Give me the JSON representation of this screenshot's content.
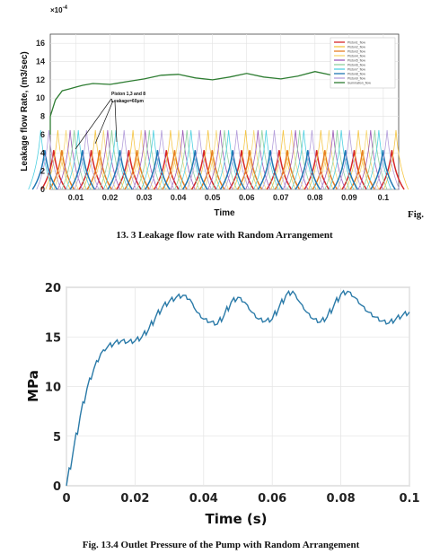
{
  "figure1": {
    "caption": "13. 3 Leakage flow rate with Random Arrangement",
    "fig_prefix": "Fig.",
    "exponent": "×10",
    "exponent_power": "-4",
    "annotation_line1": "Piston 1,3 and 8",
    "annotation_line2": "Leakage=60μm"
  },
  "figure2": {
    "caption": "Fig. 13.4 Outlet Pressure of the Pump with Random Arrangement"
  },
  "chart_data": [
    {
      "type": "line",
      "xlabel": "Time",
      "ylabel": "Leakage flow Rate, (m3/sec)",
      "xlim": [
        0,
        0.1
      ],
      "ylim": [
        0,
        17
      ],
      "y_scale_factor": "1e-4",
      "x_ticks": [
        "0.01",
        "0.02",
        "0.03",
        "0.04",
        "0.05",
        "0.06",
        "0.07",
        "0.08",
        "0.09",
        "0.1"
      ],
      "y_ticks": [
        "0",
        "2",
        "4",
        "6",
        "8",
        "10",
        "12",
        "14",
        "16"
      ],
      "grid": true,
      "legend_position": "top-right",
      "legend": [
        "Piston1_flow",
        "Piston2_flow",
        "Piston3_flow",
        "Piston4_flow",
        "Piston5_flow",
        "Piston6_flow",
        "Piston7_flow",
        "Piston8_flow",
        "Piston9_flow",
        "Summation_flow"
      ],
      "colors": [
        "#d62728",
        "#f5c542",
        "#e67e22",
        "#f7d774",
        "#9b59b6",
        "#8fd19e",
        "#4dd0e1",
        "#1f77b4",
        "#b39ddb",
        "#2e7d32"
      ],
      "period": 0.011,
      "piston_phases": [
        0.0035,
        0.0047,
        0.0059,
        0.0071,
        0.0083,
        0.0095,
        0.0107,
        0.0119,
        0.0131
      ],
      "piston_peaks": [
        4.3,
        6.5,
        4.3,
        6.5,
        6.5,
        6.5,
        6.5,
        4.3,
        6.5
      ],
      "summation_flow": {
        "x": [
          0.0,
          0.002,
          0.004,
          0.006,
          0.008,
          0.01,
          0.012,
          0.015,
          0.02,
          0.025,
          0.03,
          0.035,
          0.04,
          0.045,
          0.05,
          0.055,
          0.06,
          0.065,
          0.07,
          0.075,
          0.08,
          0.085,
          0.09,
          0.095,
          0.1
        ],
        "y": [
          6.0,
          8.0,
          9.8,
          10.8,
          11.0,
          11.2,
          11.4,
          11.6,
          11.5,
          11.8,
          12.1,
          12.5,
          12.6,
          12.2,
          12.0,
          12.3,
          12.7,
          12.3,
          12.1,
          12.4,
          12.9,
          12.5,
          12.0,
          11.8,
          12.1
        ]
      }
    },
    {
      "type": "line",
      "xlabel": "Time (s)",
      "ylabel": "MPa",
      "xlim": [
        0,
        0.1
      ],
      "ylim": [
        0,
        20
      ],
      "x_ticks": [
        "0",
        "0.02",
        "0.04",
        "0.06",
        "0.08",
        "0.1"
      ],
      "y_ticks": [
        "0",
        "5",
        "10",
        "15",
        "20"
      ],
      "grid": true,
      "color": "#2a7aa8",
      "series": [
        {
          "x": [
            0.0,
            0.002,
            0.004,
            0.006,
            0.008,
            0.01,
            0.012,
            0.014,
            0.016,
            0.018,
            0.02,
            0.022,
            0.024,
            0.026,
            0.028,
            0.03,
            0.032,
            0.034,
            0.036,
            0.038,
            0.04,
            0.042,
            0.044,
            0.046,
            0.048,
            0.05,
            0.052,
            0.054,
            0.056,
            0.058,
            0.06,
            0.062,
            0.064,
            0.066,
            0.068,
            0.07,
            0.072,
            0.074,
            0.076,
            0.078,
            0.08,
            0.082,
            0.084,
            0.086,
            0.088,
            0.09,
            0.092,
            0.094,
            0.096,
            0.098,
            0.1
          ],
          "y": [
            0.0,
            3.5,
            7.0,
            9.8,
            11.8,
            13.3,
            14.0,
            14.4,
            14.6,
            14.5,
            14.6,
            15.0,
            15.8,
            17.0,
            18.0,
            18.6,
            19.0,
            19.2,
            18.8,
            17.5,
            16.8,
            16.5,
            16.3,
            17.2,
            18.5,
            19.0,
            18.5,
            17.5,
            16.8,
            16.6,
            16.8,
            18.0,
            19.2,
            19.6,
            18.5,
            17.5,
            16.8,
            16.5,
            17.0,
            18.2,
            19.3,
            19.6,
            19.0,
            18.2,
            17.5,
            17.0,
            16.6,
            16.4,
            16.8,
            17.2,
            17.5
          ]
        }
      ]
    }
  ]
}
